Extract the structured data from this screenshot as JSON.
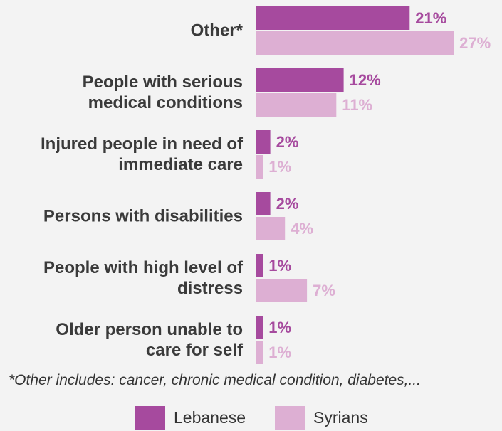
{
  "chart_data": {
    "type": "bar",
    "orientation": "horizontal",
    "categories": [
      "Other*",
      "People with serious medical conditions",
      "Injured people in need of immediate care",
      "Persons with disabilities",
      "People with high level of distress",
      "Older person unable to care for self"
    ],
    "category_lines": [
      [
        "Other*"
      ],
      [
        "People with serious",
        "medical conditions"
      ],
      [
        "Injured people in need of",
        "immediate care"
      ],
      [
        "Persons with disabilities"
      ],
      [
        "People with high level of",
        "distress"
      ],
      [
        "Older person unable to",
        "care for self"
      ]
    ],
    "series": [
      {
        "name": "Lebanese",
        "values": [
          21,
          12,
          2,
          2,
          1,
          1
        ],
        "color": "#a64a9e",
        "value_labels": [
          "21%",
          "12%",
          "2%",
          "2%",
          "1%",
          "1%"
        ]
      },
      {
        "name": "Syrians",
        "values": [
          27,
          11,
          1,
          4,
          7,
          1
        ],
        "color": "#ddafd3",
        "value_labels": [
          "27%",
          "11%",
          "1%",
          "4%",
          "7%",
          "1%"
        ]
      }
    ],
    "xlim": [
      0,
      30
    ],
    "grid": false,
    "legend_position": "bottom-center",
    "footnote": "*Other includes: cancer, chronic medical condition, diabetes,..."
  },
  "legend": {
    "lebanese_label": "Lebanese",
    "syrians_label": "Syrians"
  }
}
